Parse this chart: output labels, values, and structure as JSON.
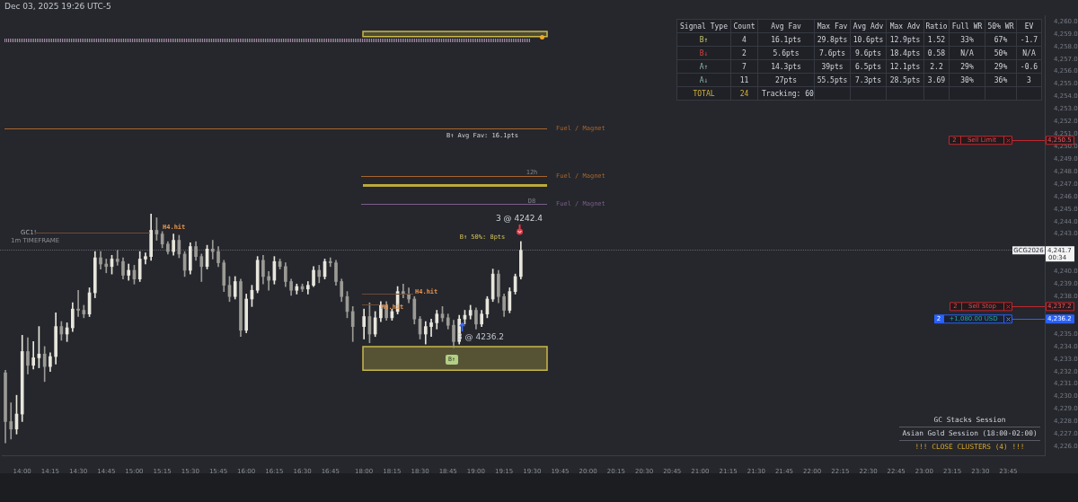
{
  "chart_data": [
    {
      "type": "candlestick",
      "title": "Dec 03, 2025 19:26 UTC-5",
      "categories": [
        null,
        null,
        null,
        "14:00",
        null,
        null,
        null,
        null,
        "14:15",
        null,
        null,
        null,
        null,
        "14:30",
        null,
        null,
        null,
        null,
        "14:45",
        null,
        null,
        null,
        null,
        "15:00",
        null,
        null,
        null,
        null,
        "15:15",
        null,
        null,
        null,
        null,
        "15:30",
        null,
        null,
        null,
        null,
        "15:45",
        null,
        null,
        null,
        null,
        "16:00",
        null,
        null,
        null,
        null,
        "16:15",
        null,
        null,
        null,
        null,
        "16:30",
        null,
        null,
        null,
        null,
        "16:45",
        null,
        null,
        null,
        null,
        null,
        "18:00",
        null,
        null,
        null,
        null,
        "18:15",
        null,
        null,
        null,
        null,
        "18:30",
        null,
        null,
        null,
        null,
        "18:45",
        null,
        null,
        null,
        null,
        "19:00",
        null,
        null,
        null,
        null,
        "19:15",
        null,
        null,
        null,
        null,
        "19:30",
        null,
        null,
        null,
        null,
        "19:45",
        null,
        null,
        null,
        null,
        "20:00",
        null,
        null,
        null,
        null,
        "20:15",
        null,
        null,
        null,
        null,
        "20:30",
        null,
        null,
        null,
        null,
        "20:45",
        null,
        null,
        null,
        null,
        "21:00",
        null,
        null,
        null,
        null,
        "21:15",
        null,
        null,
        null,
        null,
        "21:30",
        null,
        null,
        null,
        null,
        "21:45",
        null,
        null,
        null,
        null,
        "22:00",
        null,
        null,
        null,
        null,
        "22:15",
        null,
        null,
        null,
        null,
        "22:30",
        null,
        null,
        null,
        null,
        "22:45",
        null,
        null,
        null,
        null,
        "23:00",
        null,
        null,
        null,
        null,
        "23:15",
        null,
        null,
        null,
        null,
        "23:30",
        null,
        null,
        null,
        null,
        "23:45",
        null,
        null,
        null,
        null,
        null,
        null
      ],
      "ohlc": [
        [
          4231.9,
          4232.1,
          4226.3,
          4228.0
        ],
        [
          4228.0,
          4229.5,
          4226.6,
          4227.4
        ],
        [
          4227.4,
          4230.1,
          4227.0,
          4228.6
        ],
        [
          4228.6,
          4234.9,
          4228.0,
          4233.6
        ],
        [
          4233.6,
          4234.7,
          4231.8,
          4232.5
        ],
        [
          4232.5,
          4234.4,
          4232.2,
          4233.1
        ],
        [
          4233.1,
          4235.6,
          4232.3,
          4233.4
        ],
        [
          4233.4,
          4234.0,
          4231.2,
          4232.4
        ],
        [
          4232.4,
          4233.5,
          4232.0,
          4233.2
        ],
        [
          4233.2,
          4236.7,
          4232.6,
          4235.6
        ],
        [
          4235.6,
          4236.0,
          4234.5,
          4235.0
        ],
        [
          4235.0,
          4235.9,
          4234.4,
          4235.5
        ],
        [
          4235.5,
          4237.5,
          4235.2,
          4237.0
        ],
        [
          4237.0,
          4238.5,
          4236.4,
          4236.9
        ],
        [
          4236.9,
          4237.3,
          4236.3,
          4236.6
        ],
        [
          4236.6,
          4238.7,
          4236.4,
          4238.3
        ],
        [
          4238.3,
          4241.6,
          4237.9,
          4241.1
        ],
        [
          4241.1,
          4241.6,
          4240.2,
          4240.6
        ],
        [
          4240.6,
          4241.0,
          4239.9,
          4240.4
        ],
        [
          4240.4,
          4241.3,
          4239.8,
          4241.0
        ],
        [
          4241.0,
          4241.7,
          4240.5,
          4240.8
        ],
        [
          4240.8,
          4241.1,
          4239.4,
          4239.7
        ],
        [
          4239.7,
          4240.6,
          4239.3,
          4240.1
        ],
        [
          4240.1,
          4240.5,
          4239.0,
          4239.4
        ],
        [
          4239.4,
          4241.6,
          4239.2,
          4241.0
        ],
        [
          4241.0,
          4241.5,
          4240.6,
          4241.2
        ],
        [
          4241.2,
          4244.6,
          4240.9,
          4243.3
        ],
        [
          4243.3,
          4244.3,
          4242.5,
          4243.0
        ],
        [
          4243.0,
          4243.2,
          4241.9,
          4242.2
        ],
        [
          4242.2,
          4242.4,
          4241.4,
          4241.6
        ],
        [
          4241.6,
          4243.0,
          4241.3,
          4242.5
        ],
        [
          4242.5,
          4242.9,
          4241.1,
          4241.4
        ],
        [
          4241.4,
          4241.6,
          4239.6,
          4240.1
        ],
        [
          4240.1,
          4242.3,
          4239.8,
          4242.0
        ],
        [
          4242.0,
          4242.4,
          4240.9,
          4241.2
        ],
        [
          4241.2,
          4241.4,
          4239.2,
          4240.4
        ],
        [
          4240.4,
          4242.1,
          4240.2,
          4241.8
        ],
        [
          4241.8,
          4242.5,
          4241.0,
          4241.6
        ],
        [
          4241.6,
          4242.0,
          4240.4,
          4240.7
        ],
        [
          4240.7,
          4240.9,
          4238.4,
          4238.9
        ],
        [
          4238.9,
          4239.6,
          4237.6,
          4238.0
        ],
        [
          4238.0,
          4239.6,
          4237.8,
          4239.2
        ],
        [
          4239.2,
          4239.4,
          4234.8,
          4235.3
        ],
        [
          4235.3,
          4238.2,
          4235.1,
          4237.8
        ],
        [
          4237.8,
          4238.9,
          4237.2,
          4238.5
        ],
        [
          4238.5,
          4241.2,
          4238.3,
          4240.9
        ],
        [
          4240.9,
          4241.3,
          4239.0,
          4239.6
        ],
        [
          4239.6,
          4240.0,
          4238.5,
          4239.3
        ],
        [
          4239.3,
          4241.2,
          4239.0,
          4240.8
        ],
        [
          4240.8,
          4241.0,
          4240.2,
          4240.4
        ],
        [
          4240.4,
          4240.7,
          4238.8,
          4239.2
        ],
        [
          4239.2,
          4239.4,
          4238.1,
          4238.5
        ],
        [
          4238.5,
          4239.0,
          4238.2,
          4238.8
        ],
        [
          4238.8,
          4239.0,
          4238.4,
          4238.6
        ],
        [
          4238.6,
          4239.2,
          4238.2,
          4238.9
        ],
        [
          4238.9,
          4240.4,
          4238.8,
          4240.1
        ],
        [
          4240.1,
          4240.5,
          4239.1,
          4239.6
        ],
        [
          4239.6,
          4241.0,
          4239.4,
          4240.8
        ],
        [
          4240.8,
          4241.1,
          4240.4,
          4240.7
        ],
        [
          4240.7,
          4240.9,
          4238.9,
          4239.2
        ],
        [
          4239.2,
          4239.4,
          4237.6,
          4238.0
        ],
        [
          4238.0,
          4238.4,
          4236.3,
          4236.8
        ],
        [
          4236.8,
          4237.2,
          4234.4,
          4235.6
        ],
        null,
        [
          4235.6,
          4237.0,
          4234.6,
          4236.4
        ],
        [
          4236.4,
          4237.5,
          4234.3,
          4235.0
        ],
        [
          4235.0,
          4236.8,
          4234.8,
          4236.3
        ],
        [
          4236.3,
          4237.6,
          4236.0,
          4237.3
        ],
        [
          4237.3,
          4237.6,
          4236.1,
          4236.3
        ],
        [
          4236.3,
          4237.0,
          4236.1,
          4236.8
        ],
        [
          4236.8,
          4238.8,
          4236.6,
          4238.4
        ],
        [
          4238.4,
          4239.0,
          4237.9,
          4238.2
        ],
        [
          4238.2,
          4238.7,
          4237.5,
          4237.8
        ],
        [
          4237.8,
          4238.0,
          4235.8,
          4236.2
        ],
        [
          4236.2,
          4236.4,
          4234.6,
          4235.0
        ],
        [
          4235.0,
          4236.0,
          4234.2,
          4235.6
        ],
        [
          4235.6,
          4236.2,
          4234.8,
          4235.9
        ],
        [
          4235.9,
          4236.9,
          4235.4,
          4236.6
        ],
        [
          4236.6,
          4237.2,
          4236.0,
          4236.3
        ],
        [
          4236.3,
          4236.6,
          4235.4,
          4235.7
        ],
        [
          4235.7,
          4236.1,
          4233.9,
          4234.4
        ],
        [
          4234.4,
          4236.5,
          4234.2,
          4236.2
        ],
        [
          4236.2,
          4236.9,
          4235.8,
          4236.5
        ],
        [
          4236.5,
          4237.3,
          4236.2,
          4236.9
        ],
        [
          4236.9,
          4237.1,
          4235.4,
          4235.8
        ],
        [
          4235.8,
          4236.9,
          4235.6,
          4236.6
        ],
        [
          4236.6,
          4238.0,
          4236.3,
          4237.8
        ],
        [
          4237.8,
          4240.2,
          4237.6,
          4239.8
        ],
        [
          4239.8,
          4240.1,
          4237.5,
          4238.0
        ],
        [
          4238.0,
          4238.2,
          4236.4,
          4236.9
        ],
        [
          4236.9,
          4238.7,
          4236.7,
          4238.4
        ],
        [
          4238.4,
          4239.8,
          4238.2,
          4239.6
        ],
        [
          4239.6,
          4242.4,
          4239.4,
          4241.7
        ],
        null,
        null,
        null,
        null,
        null,
        null,
        null,
        null,
        null,
        null,
        null,
        null,
        null,
        null,
        null,
        null,
        null,
        null,
        null,
        null,
        null,
        null,
        null,
        null,
        null,
        null,
        null,
        null,
        null,
        null,
        null,
        null,
        null,
        null,
        null,
        null,
        null,
        null,
        null,
        null,
        null,
        null,
        null,
        null,
        null,
        null,
        null,
        null,
        null,
        null,
        null,
        null,
        null,
        null,
        null,
        null,
        null,
        null,
        null,
        null,
        null,
        null,
        null,
        null,
        null,
        null,
        null,
        null,
        null,
        null,
        null,
        null,
        null,
        null,
        null,
        null,
        null,
        null,
        null,
        null,
        null,
        null,
        null,
        null,
        null,
        null,
        null,
        null,
        null,
        null,
        null,
        null,
        null
      ],
      "ylim": [
        4225.3,
        4260.5
      ],
      "yticks": [
        {
          "value": 4226,
          "label": "4,226.0"
        },
        {
          "value": 4227,
          "label": "4,227.0"
        },
        {
          "value": 4228,
          "label": "4,228.0"
        },
        {
          "value": 4229,
          "label": "4,229.0"
        },
        {
          "value": 4230,
          "label": "4,230.0"
        },
        {
          "value": 4231,
          "label": "4,231.0"
        },
        {
          "value": 4232,
          "label": "4,232.0"
        },
        {
          "value": 4233,
          "label": "4,233.0"
        },
        {
          "value": 4234,
          "label": "4,234.0"
        },
        {
          "value": 4235,
          "label": "4,235.0"
        },
        {
          "value": 4238,
          "label": "4,238.0"
        },
        {
          "value": 4239,
          "label": "4,239.0"
        },
        {
          "value": 4240,
          "label": "4,240.0"
        },
        {
          "value": 4243,
          "label": "4,243.0"
        },
        {
          "value": 4244,
          "label": "4,244.0"
        },
        {
          "value": 4245,
          "label": "4,245.0"
        },
        {
          "value": 4246,
          "label": "4,246.0"
        },
        {
          "value": 4247,
          "label": "4,247.0"
        },
        {
          "value": 4248,
          "label": "4,248.0"
        },
        {
          "value": 4249,
          "label": "4,249.0"
        },
        {
          "value": 4250,
          "label": "4,250.0"
        },
        {
          "value": 4251,
          "label": "4,251.0"
        },
        {
          "value": 4252,
          "label": "4,252.0"
        },
        {
          "value": 4253,
          "label": "4,253.0"
        },
        {
          "value": 4254,
          "label": "4,254.0"
        },
        {
          "value": 4255,
          "label": "4,255.0"
        },
        {
          "value": 4256,
          "label": "4,256.0"
        },
        {
          "value": 4257,
          "label": "4,257.0"
        },
        {
          "value": 4258,
          "label": "4,258.0"
        },
        {
          "value": 4259,
          "label": "4,259.0"
        },
        {
          "value": 4260,
          "label": "4,260.0"
        }
      ],
      "ref_lines": [
        {
          "axis": "y",
          "value": 4258.5,
          "color": "#a58ca8",
          "line_style": "dotted"
        },
        {
          "axis": "y",
          "value": 4251.4,
          "label": "Fuel / Magnet",
          "color": "#a9652c"
        },
        {
          "axis": "y",
          "value": 4247.6,
          "label": "Fuel / Magnet",
          "color": "#a9652c"
        },
        {
          "axis": "y",
          "value": 4246.9,
          "color": "#bba93a"
        },
        {
          "axis": "y",
          "value": 4245.4,
          "label": "Fuel / Magnet",
          "color": "#7d5c8c"
        },
        {
          "axis": "y",
          "value": 4241.7,
          "label": "GCG2026",
          "color": "#5f626a",
          "line_style": "dotted"
        },
        {
          "axis": "y",
          "value": 4250.5,
          "label": "Sell Limit",
          "color": "#c0282f"
        },
        {
          "axis": "y",
          "value": 4237.2,
          "label": "Sell Stop",
          "color": "#c0282f"
        },
        {
          "axis": "y",
          "value": 4236.2,
          "label": "+1,080.00 USD",
          "color": "#2962ff"
        },
        {
          "axis": "y",
          "value": 4243.1,
          "label": "H4.hit",
          "color": "#6e4a36"
        },
        {
          "axis": "y",
          "value": 4238.2,
          "label": "H4.hit",
          "color": "#6e4a36"
        },
        {
          "axis": "y",
          "value": 4237.3,
          "label": "M6.hit",
          "color": "#6e4a36"
        }
      ],
      "bands": [
        {
          "axis": "y",
          "from": 4232.1,
          "to": 4234.0,
          "color": "#c9b84b"
        },
        {
          "axis": "y",
          "from": 4258.8,
          "to": 4259.2,
          "color": "#c9b84b"
        }
      ],
      "annotations": [
        "GC1!",
        "1m TIMEFRAME",
        "B↑ Avg Fav: 16.1pts",
        "12h",
        "D8",
        "B↑ 50%: 8pts",
        "3 @ 4242.4",
        "3 @ 4236.2",
        "B↑",
        "GC Stacks Session",
        "Asian Gold Session (18:00-02:00)",
        "!!! CLOSE CLUSTERS (4) !!!",
        "00:34",
        "2",
        "2",
        "2",
        "4,241.7",
        "4,250.5",
        "4,237.2",
        "4,236.2"
      ]
    },
    {
      "type": "other",
      "annotations": [
        "Signal Type",
        "Count",
        "Avg Fav",
        "Max Fav",
        "Avg Adv",
        "Max Adv",
        "Ratio",
        "Full WR",
        "50% WR",
        "EV",
        "B↑",
        "4",
        "16.1pts",
        "29.8pts",
        "10.6pts",
        "12.9pts",
        "1.52",
        "33%",
        "67%",
        "-1.7",
        "B↓",
        "2",
        "5.6pts",
        "7.6pts",
        "9.6pts",
        "18.4pts",
        "0.58",
        "N/A",
        "50%",
        "N/A",
        "A↑",
        "7",
        "14.3pts",
        "39pts",
        "6.5pts",
        "12.1pts",
        "2.2",
        "29%",
        "29%",
        "-0.6",
        "A↓",
        "11",
        "27pts",
        "55.5pts",
        "7.3pts",
        "28.5pts",
        "3.69",
        "30%",
        "36%",
        "3",
        "TOTAL",
        "24",
        "Tracking: 60"
      ]
    }
  ]
}
